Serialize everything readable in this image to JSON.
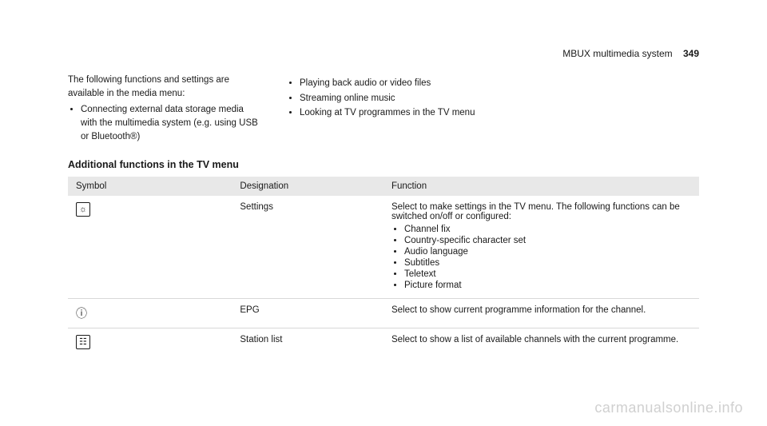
{
  "header": {
    "title": "MBUX multimedia system",
    "page_number": "349"
  },
  "intro": {
    "lead": "The following functions and settings are available in the media menu:",
    "left_items": [
      "Connecting external data storage media with the multimedia system (e.g. using USB or Bluetooth®)"
    ],
    "right_items": [
      "Playing back audio or video files",
      "Streaming online music",
      "Looking at TV programmes in the TV menu"
    ]
  },
  "tv_table": {
    "heading": "Additional functions in the TV menu",
    "columns": {
      "symbol": "Symbol",
      "designation": "Designation",
      "function": "Function"
    },
    "rows": [
      {
        "symbol_glyph": "☼",
        "symbol_boxed": true,
        "designation": "Settings",
        "function_lead": "Select to make settings in the TV menu. The following functions can be switched on/off or configured:",
        "function_items": [
          "Channel fix",
          "Country-specific character set",
          "Audio language",
          "Subtitles",
          "Teletext",
          "Picture format"
        ]
      },
      {
        "symbol_glyph": "ⓘ",
        "symbol_boxed": false,
        "designation": "EPG",
        "function_lead": "Select to show current programme information for the channel.",
        "function_items": []
      },
      {
        "symbol_glyph": "☷",
        "symbol_boxed": true,
        "designation": "Station list",
        "function_lead": "Select to show a list of available channels with the current programme.",
        "function_items": []
      }
    ]
  },
  "watermark": "carmanualsonline.info"
}
